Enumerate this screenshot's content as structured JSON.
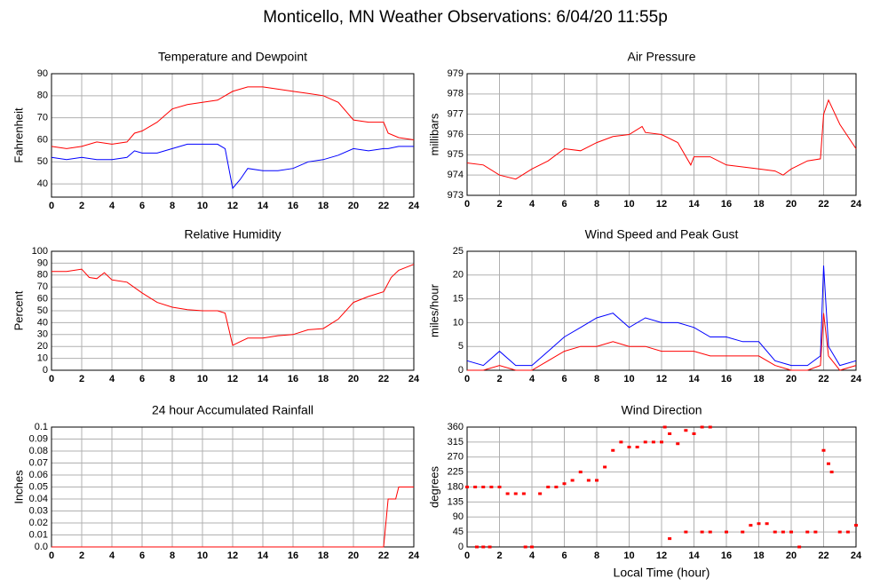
{
  "title": "Monticello, MN Weather Observations: 6/04/20 11:55p",
  "chart_data": [
    {
      "type": "line",
      "title": "Temperature and Dewpoint",
      "ylabel": "Fahrenheit",
      "x": [
        0,
        1,
        2,
        3,
        4,
        5,
        5.5,
        6,
        7,
        8,
        9,
        10,
        11,
        11.5,
        12,
        12.5,
        13,
        14,
        15,
        16,
        17,
        18,
        19,
        20,
        21,
        22,
        22.3,
        23,
        24
      ],
      "series": [
        {
          "name": "Temperature",
          "color": "#ff0000",
          "values": [
            57,
            56,
            57,
            59,
            58,
            59,
            63,
            64,
            68,
            74,
            76,
            77,
            78,
            80,
            82,
            83,
            84,
            84,
            83,
            82,
            81,
            80,
            77,
            69,
            68,
            68,
            63,
            61,
            60
          ]
        },
        {
          "name": "Dewpoint",
          "color": "#0000ff",
          "values": [
            52,
            51,
            52,
            51,
            51,
            52,
            55,
            54,
            54,
            56,
            58,
            58,
            58,
            56,
            38,
            42,
            47,
            46,
            46,
            47,
            50,
            51,
            53,
            56,
            55,
            56,
            56,
            57,
            57
          ]
        }
      ],
      "xlim": [
        0,
        24
      ],
      "xticks": [
        0,
        2,
        4,
        6,
        8,
        10,
        12,
        14,
        16,
        18,
        20,
        22,
        24
      ],
      "ylim": [
        34,
        90
      ],
      "yticks": [
        40,
        50,
        60,
        70,
        80,
        90
      ],
      "grid": true
    },
    {
      "type": "line",
      "title": "Air Pressure",
      "ylabel": "millibars",
      "x": [
        0,
        1,
        2,
        3,
        4,
        5,
        6,
        7,
        8,
        9,
        10,
        10.8,
        11,
        12,
        13,
        13.8,
        14,
        15,
        16,
        17,
        18,
        19,
        19.5,
        20,
        21,
        21.8,
        22,
        22.3,
        23,
        24
      ],
      "series": [
        {
          "name": "Pressure",
          "color": "#ff0000",
          "values": [
            974.6,
            974.5,
            974.0,
            973.8,
            974.3,
            974.7,
            975.3,
            975.2,
            975.6,
            975.9,
            976.0,
            976.4,
            976.1,
            976.0,
            975.6,
            974.5,
            974.9,
            974.9,
            974.5,
            974.4,
            974.3,
            974.2,
            974.0,
            974.3,
            974.7,
            974.8,
            977.0,
            977.7,
            976.5,
            975.3
          ]
        }
      ],
      "xlim": [
        0,
        24
      ],
      "xticks": [
        0,
        2,
        4,
        6,
        8,
        10,
        12,
        14,
        16,
        18,
        20,
        22,
        24
      ],
      "ylim": [
        973,
        979
      ],
      "yticks": [
        973,
        974,
        975,
        976,
        977,
        978,
        979
      ],
      "grid": true
    },
    {
      "type": "line",
      "title": "Relative Humidity",
      "ylabel": "Percent",
      "x": [
        0,
        1,
        2,
        2.5,
        3,
        3.5,
        4,
        5,
        6,
        7,
        8,
        9,
        10,
        11,
        11.5,
        12,
        12.5,
        13,
        14,
        15,
        16,
        17,
        18,
        19,
        20,
        21,
        22,
        22.5,
        23,
        24
      ],
      "series": [
        {
          "name": "Humidity",
          "color": "#ff0000",
          "values": [
            83,
            83,
            85,
            78,
            77,
            82,
            76,
            74,
            65,
            57,
            53,
            51,
            50,
            50,
            48,
            21,
            24,
            27,
            27,
            29,
            30,
            34,
            35,
            43,
            57,
            62,
            66,
            78,
            84,
            89
          ]
        }
      ],
      "xlim": [
        0,
        24
      ],
      "xticks": [
        0,
        2,
        4,
        6,
        8,
        10,
        12,
        14,
        16,
        18,
        20,
        22,
        24
      ],
      "ylim": [
        0,
        100
      ],
      "yticks": [
        0,
        10,
        20,
        30,
        40,
        50,
        60,
        70,
        80,
        90,
        100
      ],
      "grid": true
    },
    {
      "type": "line",
      "title": "Wind Speed and Peak Gust",
      "ylabel": "miles/hour",
      "x": [
        0,
        1,
        2,
        3,
        4,
        5,
        6,
        7,
        8,
        9,
        10,
        11,
        12,
        13,
        14,
        15,
        16,
        17,
        18,
        19,
        20,
        21,
        21.8,
        22,
        22.3,
        23,
        24
      ],
      "series": [
        {
          "name": "Peak Gust",
          "color": "#0000ff",
          "values": [
            2,
            1,
            4,
            1,
            1,
            4,
            7,
            9,
            11,
            12,
            9,
            11,
            10,
            10,
            9,
            7,
            7,
            6,
            6,
            2,
            1,
            1,
            3,
            22,
            5,
            1,
            2
          ]
        },
        {
          "name": "Wind Speed",
          "color": "#ff0000",
          "values": [
            0,
            0,
            1,
            0,
            0,
            2,
            4,
            5,
            5,
            6,
            5,
            5,
            4,
            4,
            4,
            3,
            3,
            3,
            3,
            1,
            0,
            0,
            1,
            12,
            3,
            0,
            1
          ]
        }
      ],
      "xlim": [
        0,
        24
      ],
      "xticks": [
        0,
        2,
        4,
        6,
        8,
        10,
        12,
        14,
        16,
        18,
        20,
        22,
        24
      ],
      "ylim": [
        0,
        25
      ],
      "yticks": [
        0,
        5,
        10,
        15,
        20,
        25
      ],
      "grid": true
    },
    {
      "type": "line",
      "title": "24 hour Accumulated Rainfall",
      "ylabel": "Inches",
      "x": [
        0,
        22,
        22.3,
        22.8,
        23,
        24
      ],
      "series": [
        {
          "name": "Rainfall",
          "color": "#ff0000",
          "values": [
            0,
            0,
            0.04,
            0.04,
            0.05,
            0.05
          ]
        }
      ],
      "xlim": [
        0,
        24
      ],
      "xticks": [
        0,
        2,
        4,
        6,
        8,
        10,
        12,
        14,
        16,
        18,
        20,
        22,
        24
      ],
      "ylim": [
        0,
        0.1
      ],
      "yticks": [
        {
          "value": 0,
          "label": "0.0"
        },
        0.01,
        0.02,
        0.03,
        0.04,
        0.05,
        0.06,
        0.07,
        0.08,
        0.09,
        0.1
      ],
      "grid": true
    },
    {
      "type": "scatter",
      "title": "Wind Direction",
      "ylabel": "degrees",
      "xlabel": "Local Time (hour)",
      "x": [
        0,
        0.5,
        1,
        1.5,
        2,
        0.6,
        1,
        1.4,
        2.5,
        3,
        3.5,
        3.6,
        4,
        4.5,
        5,
        5.5,
        6,
        6.5,
        7,
        7.5,
        8,
        8.5,
        9,
        9.5,
        10,
        10.5,
        11,
        11.5,
        12,
        12.2,
        12.5,
        13,
        13.5,
        14,
        14.5,
        15,
        12.5,
        13.5,
        14.5,
        15,
        16,
        17,
        17.5,
        18,
        18.5,
        19,
        19.5,
        20,
        20.5,
        21,
        21.5,
        22,
        22.3,
        22.5,
        23,
        23.5,
        24
      ],
      "series": [
        {
          "name": "Direction",
          "color": "#ff0000",
          "values": [
            180,
            180,
            180,
            180,
            180,
            0,
            0,
            0,
            160,
            160,
            160,
            0,
            0,
            160,
            180,
            180,
            190,
            200,
            225,
            200,
            200,
            240,
            290,
            315,
            300,
            300,
            315,
            315,
            315,
            360,
            340,
            310,
            350,
            340,
            360,
            360,
            25,
            45,
            45,
            45,
            45,
            45,
            65,
            70,
            70,
            45,
            45,
            45,
            0,
            45,
            45,
            290,
            250,
            225,
            45,
            45,
            65
          ]
        }
      ],
      "xlim": [
        0,
        24
      ],
      "xticks": [
        0,
        2,
        4,
        6,
        8,
        10,
        12,
        14,
        16,
        18,
        20,
        22,
        24
      ],
      "ylim": [
        0,
        360
      ],
      "yticks": [
        0,
        45,
        90,
        135,
        180,
        225,
        270,
        315,
        360
      ],
      "grid": true
    }
  ]
}
